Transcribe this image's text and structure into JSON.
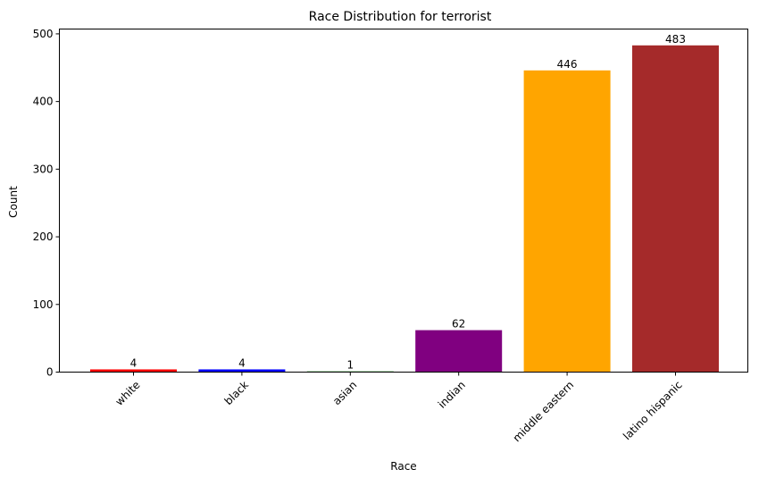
{
  "chart_data": {
    "type": "bar",
    "title": "Race Distribution for terrorist",
    "xlabel": "Race",
    "ylabel": "Count",
    "categories": [
      "white",
      "black",
      "asian",
      "indian",
      "middle eastern",
      "latino hispanic"
    ],
    "values": [
      4,
      4,
      1,
      62,
      446,
      483
    ],
    "data_labels": [
      "4",
      "4",
      "1",
      "62",
      "446",
      "483"
    ],
    "colors": [
      "#ff0000",
      "#0000ff",
      "#008000",
      "#800080",
      "#ffa500",
      "#a52a2a"
    ],
    "ylim": [
      0,
      507.15
    ],
    "yticks": [
      0,
      100,
      200,
      300,
      400,
      500
    ],
    "ytick_labels": [
      "0",
      "100",
      "200",
      "300",
      "400",
      "500"
    ],
    "xtick_rotation_deg": 45,
    "grid": false,
    "legend": "none"
  }
}
